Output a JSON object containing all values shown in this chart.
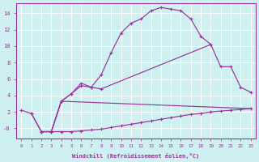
{
  "xlabel": "Windchill (Refroidissement éolien,°C)",
  "background_color": "#cff0f0",
  "grid_color": "#ffffff",
  "line_color": "#993399",
  "xlim": [
    -0.5,
    23.5
  ],
  "ylim": [
    -1.2,
    15.2
  ],
  "xticks": [
    0,
    1,
    2,
    3,
    4,
    5,
    6,
    7,
    8,
    9,
    10,
    11,
    12,
    13,
    14,
    15,
    16,
    17,
    18,
    19,
    20,
    21,
    22,
    23
  ],
  "yticks": [
    0,
    2,
    4,
    6,
    8,
    10,
    12,
    14
  ],
  "ytick_labels": [
    "-0",
    "2",
    "4",
    "6",
    "8",
    "10",
    "12",
    "14"
  ],
  "line1_x": [
    0,
    1,
    2,
    3,
    4,
    5,
    6,
    7,
    8,
    9,
    10,
    11,
    12,
    13,
    14,
    15,
    16,
    17,
    18,
    19,
    20,
    21,
    22,
    23
  ],
  "line1_y": [
    2.2,
    1.8,
    -0.4,
    -0.4,
    -0.4,
    -0.4,
    -0.3,
    -0.2,
    -0.1,
    0.1,
    0.3,
    0.5,
    0.7,
    0.9,
    1.1,
    1.3,
    1.5,
    1.7,
    1.8,
    2.0,
    2.1,
    2.2,
    2.3,
    2.4
  ],
  "line2_x": [
    1,
    2,
    3,
    4,
    5,
    6,
    7,
    8,
    9,
    10,
    11,
    12,
    13,
    14,
    15,
    16,
    17,
    18,
    19
  ],
  "line2_y": [
    1.8,
    -0.4,
    -0.4,
    3.3,
    4.2,
    5.2,
    5.0,
    6.5,
    9.2,
    11.6,
    12.8,
    13.3,
    14.3,
    14.7,
    14.5,
    14.3,
    13.3,
    11.2,
    10.2
  ],
  "line3_x": [
    2,
    3,
    4,
    5,
    6,
    7,
    8,
    19,
    20,
    21,
    22,
    23
  ],
  "line3_y": [
    -0.4,
    -0.4,
    3.3,
    4.2,
    5.5,
    5.0,
    4.8,
    10.2,
    7.5,
    7.5,
    5.0,
    4.4
  ],
  "line4_x": [
    2,
    3,
    4,
    23
  ],
  "line4_y": [
    -0.4,
    -0.4,
    3.3,
    2.4
  ]
}
